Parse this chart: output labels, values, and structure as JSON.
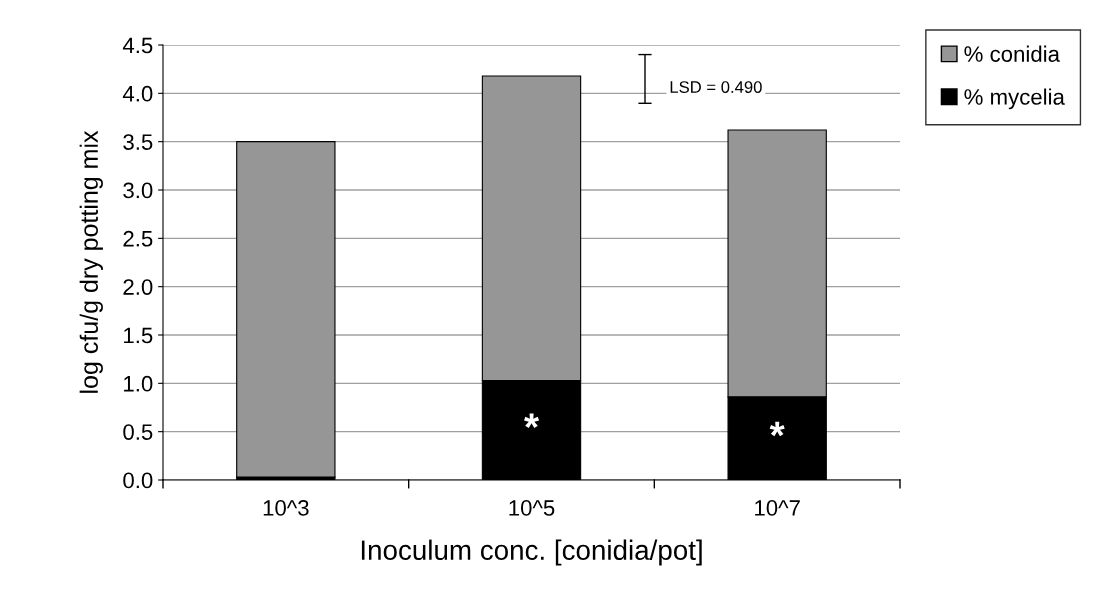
{
  "chart_data": {
    "type": "bar",
    "stacked": true,
    "xlabel": "Inoculum conc. [conidia/pot]",
    "ylabel": "log cfu/g dry potting mix",
    "categories": [
      "10^3",
      "10^5",
      "10^7"
    ],
    "series": [
      {
        "name": "% mycelia",
        "color": "#000000",
        "values": [
          0.03,
          1.03,
          0.86
        ]
      },
      {
        "name": "% conidia",
        "color": "#969696",
        "values": [
          3.47,
          3.15,
          2.76
        ]
      }
    ],
    "ylim": [
      0,
      4.5
    ],
    "yticks": [
      {
        "value": 0,
        "label": "0.0"
      },
      0.5,
      {
        "value": 1,
        "label": "1.0"
      },
      1.5,
      {
        "value": 2,
        "label": "2.0"
      },
      2.5,
      {
        "value": 3,
        "label": "3.0"
      },
      3.5,
      {
        "value": 4,
        "label": "4.0"
      },
      4.5
    ],
    "grid": "y",
    "legend": "top right",
    "annotations": [
      "LSD = 0.490",
      "*",
      "*"
    ]
  }
}
